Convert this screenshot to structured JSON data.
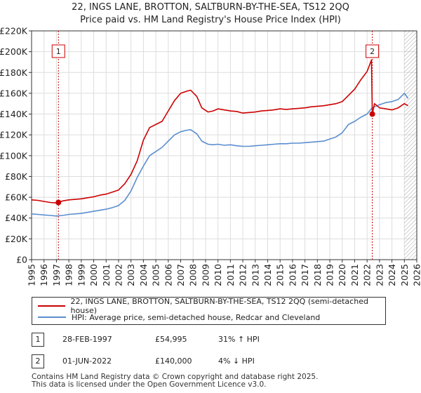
{
  "chart_data": {
    "type": "line",
    "title": "22, INGS LANE, BROTTON, SALTBURN-BY-THE-SEA, TS12 2QQ",
    "subtitle": "Price paid vs. HM Land Registry's House Price Index (HPI)",
    "xlim": [
      1995,
      2026
    ],
    "ylim": [
      0,
      220000
    ],
    "xticks": [
      1995,
      1996,
      1997,
      1998,
      1999,
      2000,
      2001,
      2002,
      2003,
      2004,
      2005,
      2006,
      2007,
      2008,
      2009,
      2010,
      2011,
      2012,
      2013,
      2014,
      2015,
      2016,
      2017,
      2018,
      2019,
      2020,
      2021,
      2022,
      2023,
      2024,
      2025,
      2026
    ],
    "yticks": [
      {
        "value": 0,
        "label": "£0"
      },
      {
        "value": 20000,
        "label": "£20K"
      },
      {
        "value": 40000,
        "label": "£40K"
      },
      {
        "value": 60000,
        "label": "£60K"
      },
      {
        "value": 80000,
        "label": "£80K"
      },
      {
        "value": 100000,
        "label": "£100K"
      },
      {
        "value": 120000,
        "label": "£120K"
      },
      {
        "value": 140000,
        "label": "£140K"
      },
      {
        "value": 160000,
        "label": "£160K"
      },
      {
        "value": 180000,
        "label": "£180K"
      },
      {
        "value": 200000,
        "label": "£200K"
      },
      {
        "value": 220000,
        "label": "£220K"
      }
    ],
    "grid": true,
    "series": [
      {
        "name": "22, INGS LANE, BROTTON, SALTBURN-BY-THE-SEA, TS12 2QQ (semi-detached house)",
        "color": "#cc0000",
        "x": [
          1995.0,
          1995.5,
          1996.0,
          1996.5,
          1997.0,
          1997.16,
          1997.5,
          1998.0,
          1998.5,
          1999.0,
          1999.5,
          2000.0,
          2000.5,
          2001.0,
          2001.5,
          2002.0,
          2002.5,
          2003.0,
          2003.5,
          2004.0,
          2004.5,
          2005.0,
          2005.5,
          2006.0,
          2006.5,
          2007.0,
          2007.5,
          2007.8,
          2008.3,
          2008.7,
          2009.2,
          2009.6,
          2010.0,
          2010.5,
          2011.0,
          2011.5,
          2012.0,
          2012.5,
          2013.0,
          2013.5,
          2014.0,
          2014.5,
          2015.0,
          2015.5,
          2016.0,
          2016.5,
          2017.0,
          2017.5,
          2018.0,
          2018.5,
          2019.0,
          2019.5,
          2020.0,
          2020.5,
          2021.0,
          2021.5,
          2022.0,
          2022.35,
          2022.42,
          2022.6,
          2023.0,
          2023.5,
          2024.0,
          2024.5,
          2025.0,
          2025.3
        ],
        "values": [
          57500,
          57000,
          56000,
          55000,
          54500,
          54995,
          56500,
          57500,
          58000,
          58500,
          59500,
          60500,
          62000,
          63000,
          65000,
          67000,
          73000,
          82000,
          95000,
          115000,
          127000,
          130000,
          133000,
          143000,
          153000,
          160000,
          162000,
          163000,
          157000,
          146000,
          142000,
          143000,
          145000,
          144000,
          143000,
          142500,
          141000,
          141500,
          142000,
          143000,
          143500,
          144000,
          145000,
          144500,
          145000,
          145500,
          146000,
          147000,
          147500,
          148000,
          149000,
          150000,
          152000,
          158000,
          164000,
          173000,
          181000,
          192000,
          140000,
          150000,
          146000,
          145000,
          144000,
          146000,
          150000,
          148000
        ]
      },
      {
        "name": "HPI: Average price, semi-detached house, Redcar and Cleveland",
        "color": "#5b8ecf",
        "x": [
          1995.0,
          1995.5,
          1996.0,
          1996.5,
          1997.0,
          1997.5,
          1998.0,
          1998.5,
          1999.0,
          1999.5,
          2000.0,
          2000.5,
          2001.0,
          2001.5,
          2002.0,
          2002.5,
          2003.0,
          2003.5,
          2004.0,
          2004.5,
          2005.0,
          2005.5,
          2006.0,
          2006.5,
          2007.0,
          2007.5,
          2007.8,
          2008.3,
          2008.7,
          2009.2,
          2009.6,
          2010.0,
          2010.5,
          2011.0,
          2011.5,
          2012.0,
          2012.5,
          2013.0,
          2013.5,
          2014.0,
          2014.5,
          2015.0,
          2015.5,
          2016.0,
          2016.5,
          2017.0,
          2017.5,
          2018.0,
          2018.5,
          2019.0,
          2019.5,
          2020.0,
          2020.5,
          2021.0,
          2021.5,
          2022.0,
          2022.4,
          2023.0,
          2023.5,
          2024.0,
          2024.5,
          2025.0,
          2025.3
        ],
        "values": [
          44000,
          43500,
          43000,
          42500,
          42000,
          42500,
          43500,
          44000,
          44500,
          45500,
          46500,
          47500,
          48500,
          50000,
          52000,
          57000,
          66000,
          79000,
          90000,
          100000,
          104000,
          108000,
          114000,
          120000,
          123000,
          124500,
          125000,
          121000,
          114000,
          111000,
          110500,
          111000,
          110000,
          110500,
          109500,
          109000,
          109000,
          109500,
          110000,
          110500,
          111000,
          111500,
          111500,
          112000,
          112000,
          112500,
          113000,
          113500,
          114000,
          116000,
          118000,
          122000,
          130000,
          133000,
          137000,
          140000,
          146000,
          149000,
          151000,
          152000,
          154000,
          160000,
          155000
        ]
      }
    ],
    "sales": [
      {
        "label": "1",
        "x": 1997.16,
        "value": 54995
      },
      {
        "label": "2",
        "x": 2022.42,
        "value": 140000
      }
    ],
    "hatch_after": 2025.0
  },
  "legend": {
    "property": "22, INGS LANE, BROTTON, SALTBURN-BY-THE-SEA, TS12 2QQ (semi-detached house)",
    "hpi": "HPI: Average price, semi-detached house, Redcar and Cleveland",
    "property_color": "#cc0000",
    "hpi_color": "#5b8ecf"
  },
  "sales_table": [
    {
      "num": "1",
      "date": "28-FEB-1997",
      "price": "£54,995",
      "hpi": "31% ↑ HPI"
    },
    {
      "num": "2",
      "date": "01-JUN-2022",
      "price": "£140,000",
      "hpi": "4% ↓ HPI"
    }
  ],
  "footer": {
    "line1": "Contains HM Land Registry data © Crown copyright and database right 2025.",
    "line2": "This data is licensed under the Open Government Licence v3.0."
  }
}
